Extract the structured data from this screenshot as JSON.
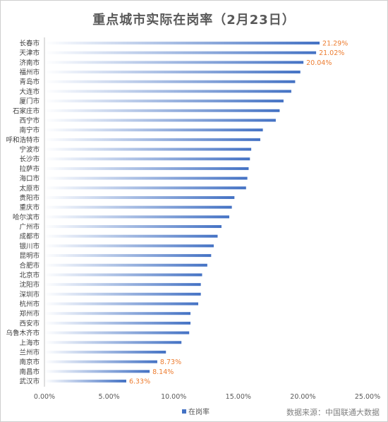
{
  "chart_data": {
    "type": "bar",
    "orientation": "horizontal",
    "title": "重点城市实际在岗率（2月23日）",
    "categories": [
      "长春市",
      "天津市",
      "济南市",
      "福州市",
      "青岛市",
      "大连市",
      "厦门市",
      "石家庄市",
      "西宁市",
      "南宁市",
      "呼和浩特市",
      "宁波市",
      "长沙市",
      "拉萨市",
      "海口市",
      "太原市",
      "贵阳市",
      "重庆市",
      "哈尔滨市",
      "广州市",
      "成都市",
      "银川市",
      "昆明市",
      "合肥市",
      "北京市",
      "沈阳市",
      "深圳市",
      "杭州市",
      "郑州市",
      "西安市",
      "乌鲁木齐市",
      "上海市",
      "兰州市",
      "南京市",
      "南昌市",
      "武汉市"
    ],
    "series": [
      {
        "name": "在岗率",
        "values": [
          21.29,
          21.02,
          20.04,
          19.8,
          19.4,
          19.1,
          18.5,
          18.2,
          17.9,
          16.9,
          16.7,
          16.0,
          15.9,
          15.8,
          15.7,
          15.6,
          14.7,
          14.5,
          14.3,
          13.7,
          13.4,
          13.1,
          12.9,
          12.6,
          12.2,
          12.1,
          12.1,
          11.9,
          11.3,
          11.3,
          11.2,
          10.6,
          9.4,
          8.73,
          8.14,
          6.33
        ]
      }
    ],
    "data_labels": [
      {
        "category": "长春市",
        "text": "21.29%"
      },
      {
        "category": "天津市",
        "text": "21.02%"
      },
      {
        "category": "济南市",
        "text": "20.04%"
      },
      {
        "category": "南京市",
        "text": "8.73%"
      },
      {
        "category": "南昌市",
        "text": "8.14%"
      },
      {
        "category": "武汉市",
        "text": "6.33%"
      }
    ],
    "xlim": [
      0,
      25
    ],
    "x_ticks": [
      0,
      5,
      10,
      15,
      20,
      25
    ],
    "x_tick_labels": [
      "0.00%",
      "5.00%",
      "10.00%",
      "15.00%",
      "20.00%",
      "25.00%"
    ],
    "grid": false,
    "legend_position": "bottom",
    "bar_color": "#4472c4",
    "bar_fade_color": "#ffffff",
    "label_color": "#ed7d31"
  },
  "legend_label": "在岗率",
  "source_text": "数据来源：中国联通大数据"
}
